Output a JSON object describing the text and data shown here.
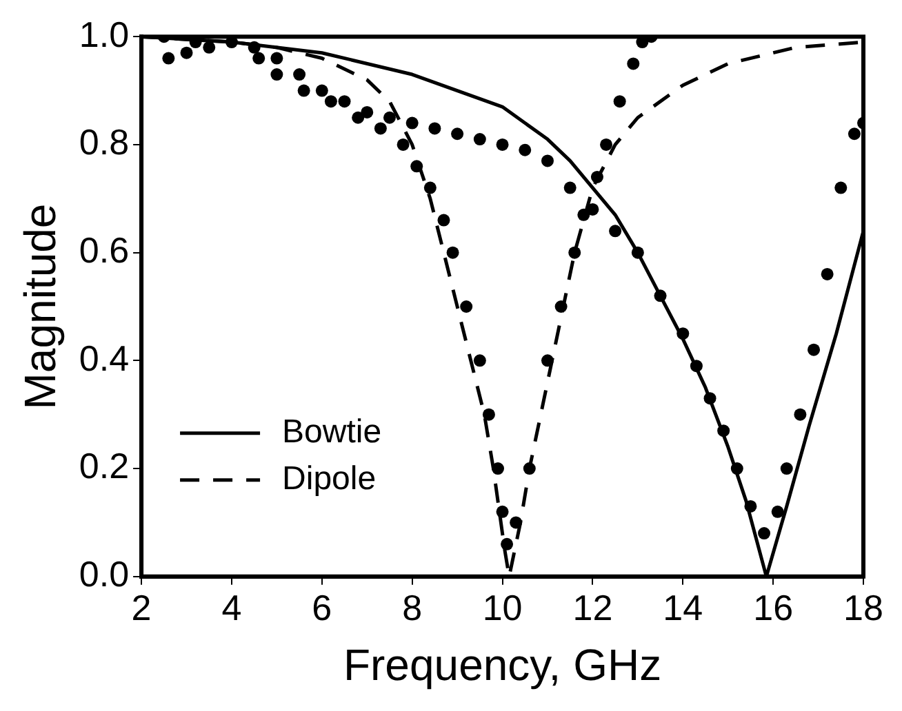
{
  "chart_data": {
    "type": "line",
    "xlabel": "Frequency, GHz",
    "ylabel": "Magnitude",
    "xlim": [
      2,
      18
    ],
    "xticks": [
      2,
      4,
      6,
      8,
      10,
      12,
      14,
      16,
      18
    ],
    "ylim": [
      0,
      1
    ],
    "yticks": [
      {
        "value": 0,
        "label": "0.0"
      },
      0.2,
      0.4,
      0.6,
      0.8,
      {
        "value": 1,
        "label": "1.0"
      }
    ],
    "grid": false,
    "legend": "bottom left",
    "series": [
      {
        "name": "Bowtie",
        "line_style": "solid",
        "marker": "none",
        "color": "#000000",
        "x": [
          2,
          4,
          6,
          8,
          9,
          10,
          11,
          11.5,
          12,
          12.5,
          13,
          13.5,
          14,
          14.5,
          15,
          15.4,
          15.85,
          16.3,
          16.8,
          17.4,
          18
        ],
        "values": [
          1.0,
          0.99,
          0.97,
          0.93,
          0.9,
          0.87,
          0.81,
          0.77,
          0.72,
          0.67,
          0.6,
          0.52,
          0.44,
          0.35,
          0.24,
          0.14,
          0.0,
          0.13,
          0.28,
          0.45,
          0.64
        ]
      },
      {
        "name": "Dipole",
        "line_style": "dashed",
        "marker": "none",
        "color": "#000000",
        "x": [
          2,
          4,
          5,
          6,
          7,
          7.5,
          8,
          8.4,
          8.7,
          9,
          9.3,
          9.6,
          9.8,
          10.05,
          10.15,
          10.4,
          10.6,
          10.9,
          11.1,
          11.4,
          11.6,
          12,
          12.5,
          13,
          14,
          15,
          16.5,
          18
        ],
        "values": [
          1.0,
          0.99,
          0.98,
          0.96,
          0.92,
          0.88,
          0.8,
          0.7,
          0.6,
          0.5,
          0.4,
          0.3,
          0.2,
          0.05,
          0.0,
          0.1,
          0.2,
          0.32,
          0.4,
          0.52,
          0.6,
          0.72,
          0.8,
          0.85,
          0.91,
          0.95,
          0.98,
          0.99
        ]
      },
      {
        "type": "scatter",
        "marker": "circle",
        "color": "#000000",
        "x": [
          2.6,
          3,
          3.5,
          4,
          4.5,
          5,
          5.5,
          6,
          6.5,
          7,
          7.5,
          8,
          8.5,
          9,
          9.5,
          10,
          10.5,
          11,
          11.5,
          12,
          12.5,
          13,
          13.5,
          14,
          14.3,
          14.6,
          14.9,
          15.2,
          15.5,
          15.8,
          16.1,
          16.3,
          16.6,
          16.9,
          17.2,
          17.5,
          17.8,
          18
        ],
        "values": [
          0.96,
          0.97,
          0.98,
          0.99,
          0.98,
          0.96,
          0.93,
          0.9,
          0.88,
          0.86,
          0.85,
          0.84,
          0.83,
          0.82,
          0.81,
          0.8,
          0.79,
          0.77,
          0.72,
          0.68,
          0.64,
          0.6,
          0.52,
          0.45,
          0.39,
          0.33,
          0.27,
          0.2,
          0.13,
          0.08,
          0.12,
          0.2,
          0.3,
          0.42,
          0.56,
          0.72,
          0.82,
          0.84
        ]
      },
      {
        "type": "scatter",
        "marker": "circle",
        "color": "#000000",
        "x": [
          2.5,
          3.2,
          4,
          4.6,
          5,
          5.6,
          6.2,
          6.8,
          7.3,
          7.8,
          8.1,
          8.4,
          8.7,
          8.9,
          9.2,
          9.5,
          9.7,
          9.9,
          10.0,
          10.1,
          10.3,
          10.6,
          11.0,
          11.3,
          11.6,
          11.8,
          12.1,
          12.3,
          12.6,
          12.9,
          13.1,
          13.3
        ],
        "values": [
          1.0,
          0.99,
          null,
          0.96,
          0.93,
          0.9,
          0.88,
          0.85,
          0.83,
          0.8,
          0.76,
          0.72,
          0.66,
          0.6,
          0.5,
          0.4,
          0.3,
          0.2,
          0.12,
          0.06,
          0.1,
          0.2,
          0.4,
          0.5,
          0.6,
          0.67,
          0.74,
          0.8,
          0.88,
          0.95,
          0.99,
          1.0
        ]
      }
    ]
  }
}
